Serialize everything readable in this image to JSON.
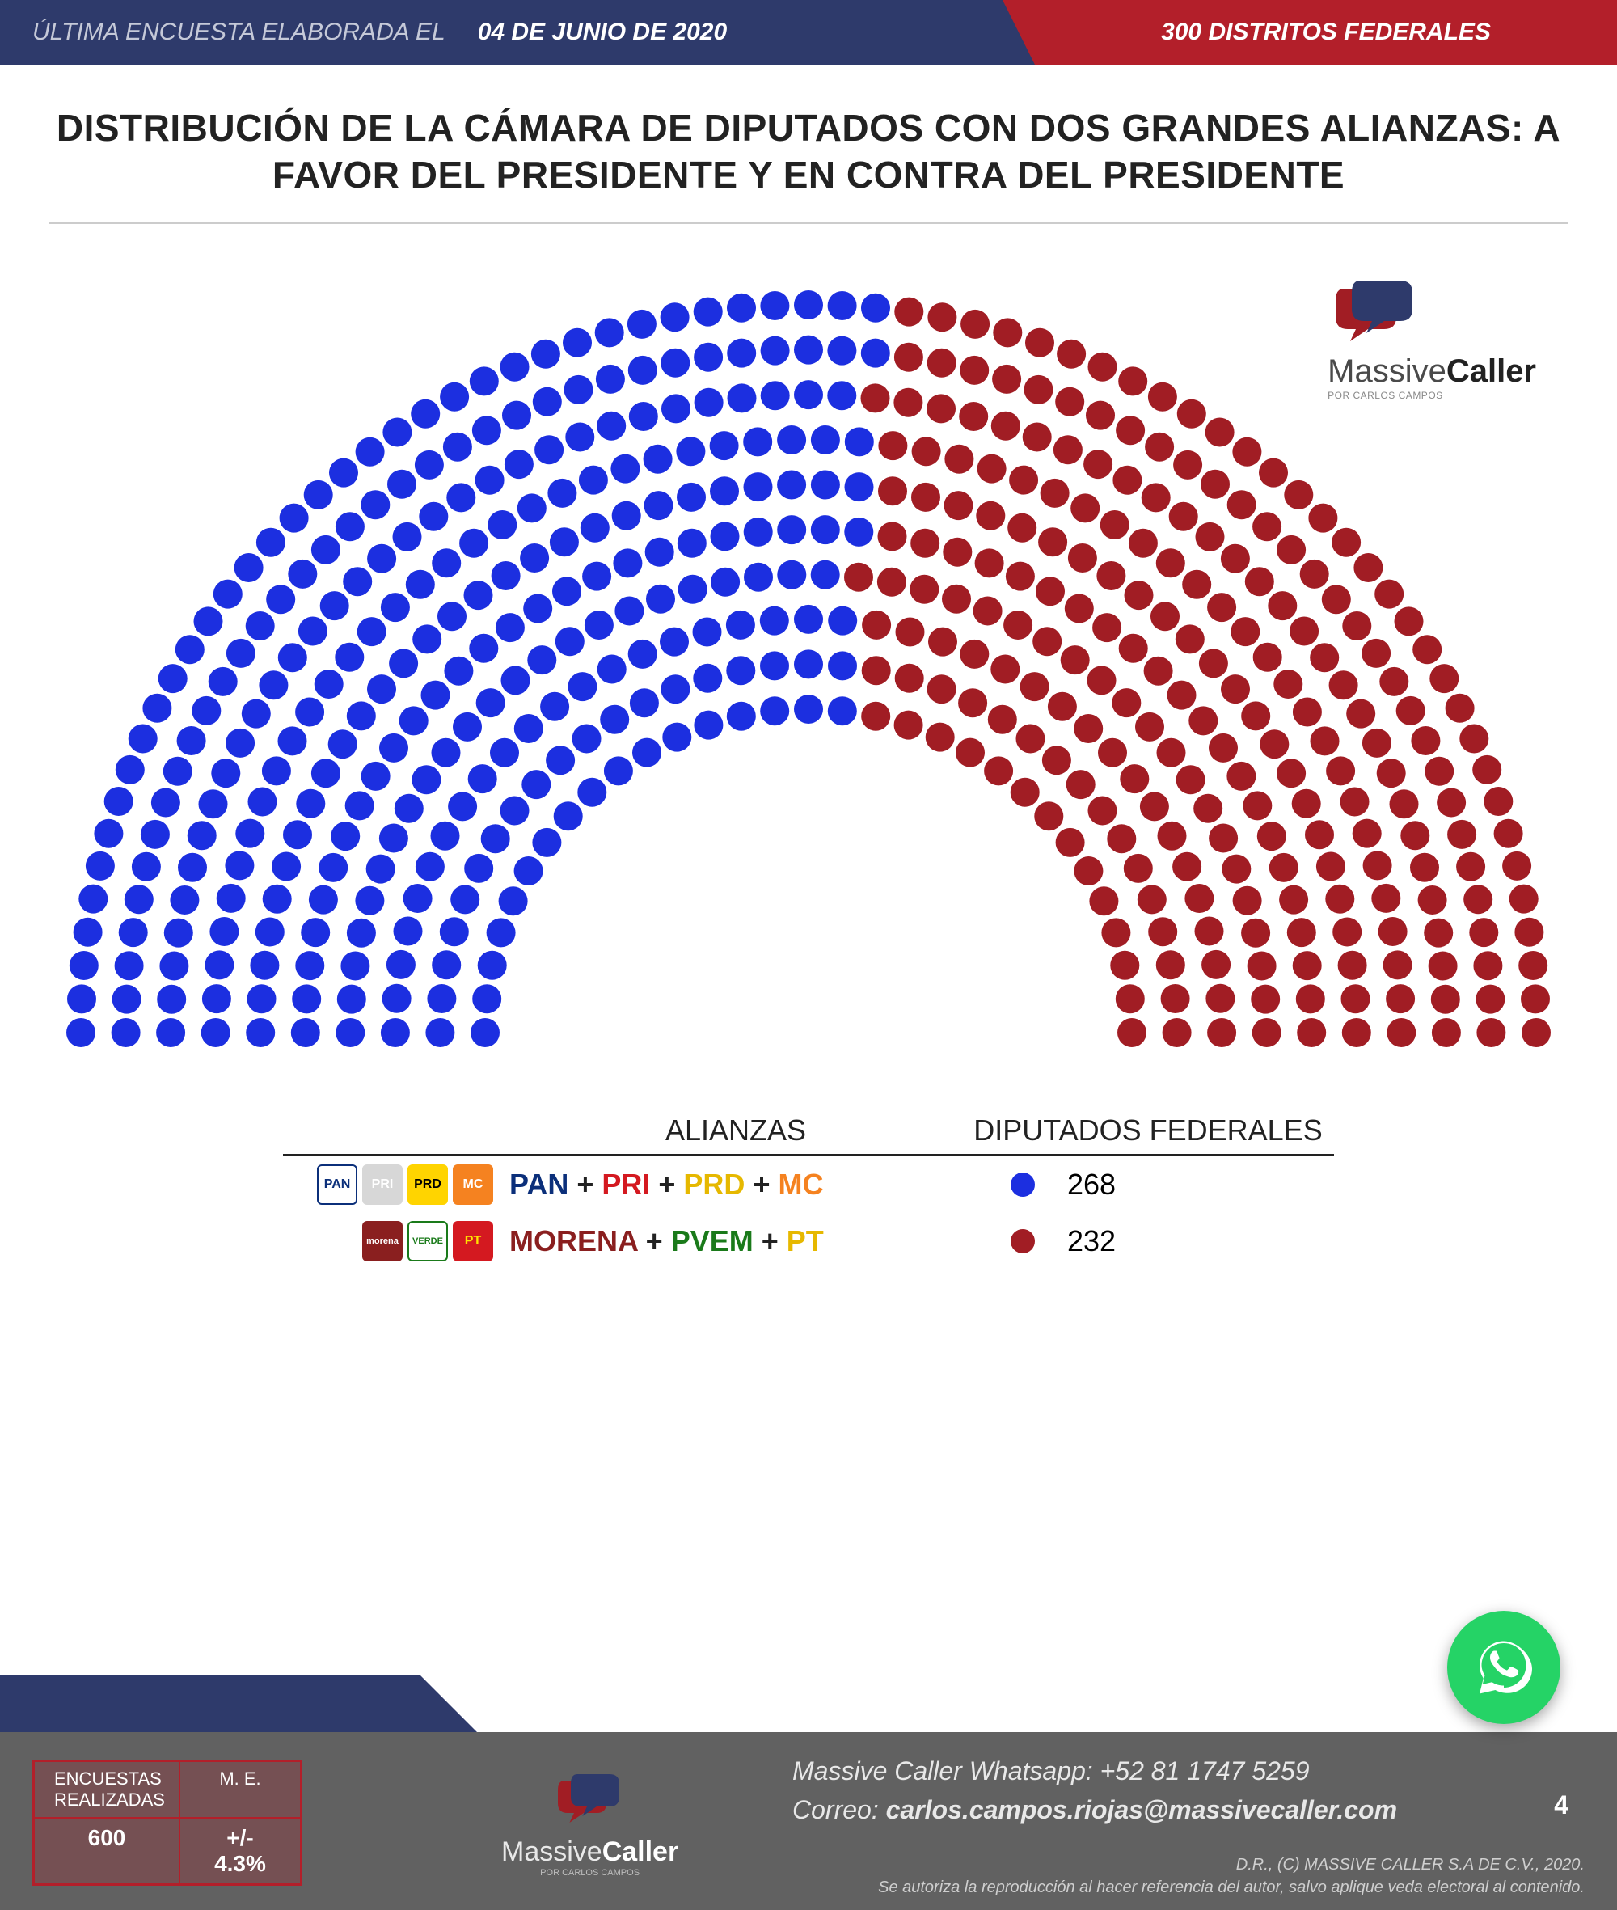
{
  "header": {
    "survey_label": "ÚLTIMA ENCUESTA ELABORADA EL",
    "survey_date": "04 DE JUNIO DE 2020",
    "districts": "300 DISTRITOS FEDERALES",
    "left_bg": "#2e3a6b",
    "right_bg": "#b31f2a"
  },
  "title": "DISTRIBUCIÓN DE LA CÁMARA DE DIPUTADOS CON DOS GRANDES ALIANZAS: A FAVOR DEL PRESIDENTE Y EN CONTRA DEL PRESIDENTE",
  "brand": {
    "name": "Massive",
    "bold": "Caller",
    "sub": "POR CARLOS CAMPOS"
  },
  "parliament": {
    "type": "parliament-hemicycle",
    "total_seats": 500,
    "rows": 10,
    "seat_radius": 18,
    "background": "#ffffff",
    "groups": [
      {
        "name": "PAN + PRI + PRD + MC",
        "seats": 268,
        "color": "#1c2fe0"
      },
      {
        "name": "MORENA + PVEM + PT",
        "seats": 232,
        "color": "#a11d24"
      }
    ]
  },
  "legend": {
    "head_alliances": "ALIANZAS",
    "head_deputies": "DIPUTADOS FEDERALES",
    "rows": [
      {
        "parties": [
          {
            "abbr": "PAN",
            "color": "#0b2f7a",
            "bg": "#ffffff",
            "border": "#0b2f7a"
          },
          {
            "abbr": "PRI",
            "color": "#ffffff",
            "bg": "#d7d7d7",
            "text": "PRI"
          },
          {
            "abbr": "PRD",
            "color": "#000000",
            "bg": "#ffd400"
          },
          {
            "abbr": "MC",
            "color": "#ffffff",
            "bg": "#f58220"
          }
        ],
        "alliance_html": [
          {
            "t": "PAN",
            "c": "#0b2f7a"
          },
          {
            "t": " + ",
            "c": "#222"
          },
          {
            "t": "PRI",
            "c": "#d41920"
          },
          {
            "t": " + ",
            "c": "#222"
          },
          {
            "t": "PRD",
            "c": "#e6b800"
          },
          {
            "t": " + ",
            "c": "#222"
          },
          {
            "t": "MC",
            "c": "#f58220"
          }
        ],
        "dot_color": "#1c2fe0",
        "count": "268"
      },
      {
        "parties": [
          {
            "abbr": "morena",
            "color": "#ffffff",
            "bg": "#8a1f1f",
            "fs": 11
          },
          {
            "abbr": "VERDE",
            "color": "#1a7a1a",
            "bg": "#ffffff",
            "border": "#1a7a1a",
            "fs": 11
          },
          {
            "abbr": "PT",
            "color": "#ffe300",
            "bg": "#d41920"
          }
        ],
        "alliance_html": [
          {
            "t": "MORENA",
            "c": "#8a1f1f"
          },
          {
            "t": " + ",
            "c": "#222"
          },
          {
            "t": "PVEM",
            "c": "#1a7a1a"
          },
          {
            "t": " + ",
            "c": "#222"
          },
          {
            "t": "PT",
            "c": "#e6b800"
          }
        ],
        "dot_color": "#a11d24",
        "count": "232"
      }
    ]
  },
  "footer": {
    "stats": {
      "label_surveys": "ENCUESTAS REALIZADAS",
      "label_me": "M. E.",
      "value_surveys": "600",
      "value_me": "+/- 4.3%"
    },
    "contact_l1_a": "Massive Caller ",
    "contact_l1_b": "Whatsapp: +52   81 1747 5259",
    "contact_l2_a": "Correo: ",
    "contact_l2_b": "carlos.campos.riojas@massivecaller.com",
    "page": "4",
    "copyright_1": "D.R., (C) MASSIVE CALLER S.A DE C.V., 2020.",
    "copyright_2": "Se autoriza la reproducción al hacer referencia del autor, salvo aplique veda electoral al contenido.",
    "stripe_bg": "#616161",
    "navy": "#2e3a6b"
  }
}
